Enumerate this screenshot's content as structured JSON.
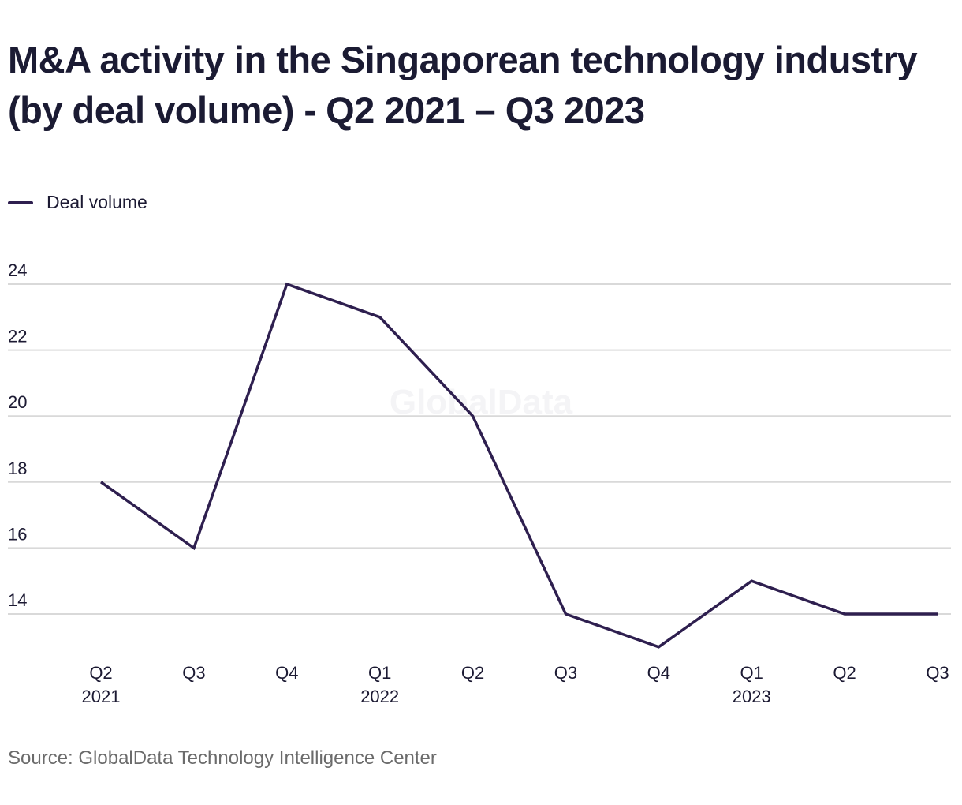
{
  "chart_data": {
    "type": "line",
    "title": "M&A activity in the Singaporean technology industry (by deal volume) - Q2 2021 – Q3 2023",
    "xlabel": "",
    "ylabel": "",
    "categories": [
      "Q2 2021",
      "Q3 2021",
      "Q4 2021",
      "Q1 2022",
      "Q2 2022",
      "Q3 2022",
      "Q4 2022",
      "Q1 2023",
      "Q2 2023",
      "Q3 2023"
    ],
    "tick_labels": [
      {
        "quarter": "Q2",
        "year": "2021"
      },
      {
        "quarter": "Q3",
        "year": ""
      },
      {
        "quarter": "Q4",
        "year": ""
      },
      {
        "quarter": "Q1",
        "year": "2022"
      },
      {
        "quarter": "Q2",
        "year": ""
      },
      {
        "quarter": "Q3",
        "year": ""
      },
      {
        "quarter": "Q4",
        "year": ""
      },
      {
        "quarter": "Q1",
        "year": "2023"
      },
      {
        "quarter": "Q2",
        "year": ""
      },
      {
        "quarter": "Q3",
        "year": ""
      }
    ],
    "series": [
      {
        "name": "Deal volume",
        "color": "#2e1f4f",
        "values": [
          18,
          16,
          24,
          23,
          20,
          14,
          13,
          15,
          14,
          14
        ]
      }
    ],
    "yticks": [
      14,
      16,
      18,
      20,
      22,
      24
    ],
    "ylim": [
      12,
      24
    ],
    "grid": true,
    "legend_position": "top-left",
    "watermark": "GlobalData"
  },
  "colors": {
    "line": "#2e1f4f",
    "grid": "#d9d9d9",
    "title": "#1b1b33",
    "source": "#6b6b6b"
  },
  "source": "Source: GlobalData Technology Intelligence Center"
}
